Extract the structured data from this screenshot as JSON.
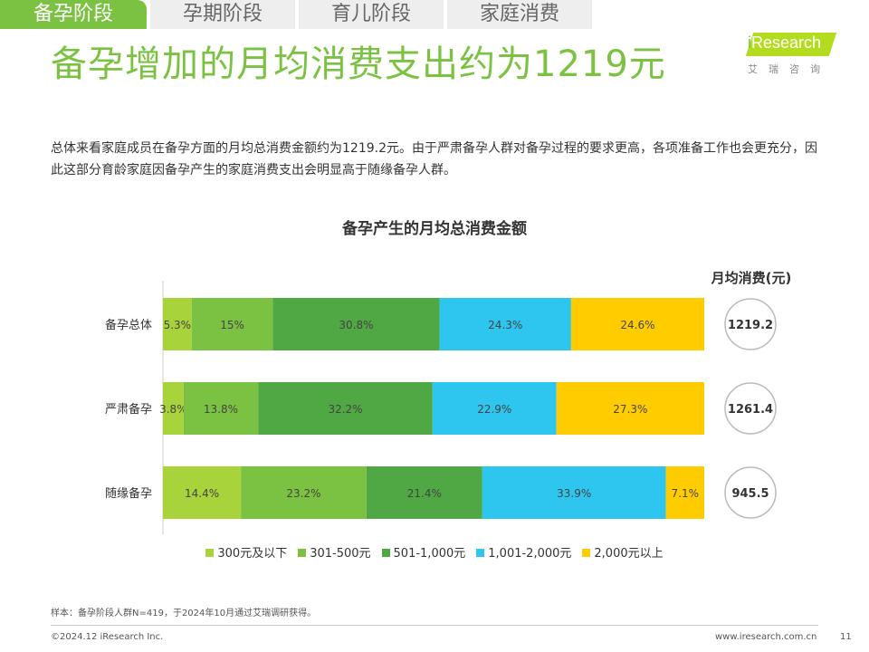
{
  "tabs": [
    {
      "label": "备孕阶段",
      "active": true
    },
    {
      "label": "孕期阶段",
      "active": false
    },
    {
      "label": "育儿阶段",
      "active": false
    },
    {
      "label": "家庭消费",
      "active": false
    }
  ],
  "page_title": "备孕增加的月均消费支出约为1219元",
  "logo": {
    "brand": "iResearch",
    "subtitle": "艾瑞咨询"
  },
  "summary": "总体来看家庭成员在备孕方面的月均总消费金额约为1219.2元。由于严肃备孕人群对备孕过程的要求更高，各项准备工作也会更充分，因此这部分育龄家庭因备孕产生的家庭消费支出会明显高于随缘备孕人群。",
  "chart_data": {
    "type": "bar",
    "orientation": "horizontal",
    "stacked": "percent",
    "title": "备孕产生的月均总消费金额",
    "categories": [
      "备孕总体",
      "严肃备孕",
      "随缘备孕"
    ],
    "series": [
      {
        "name": "300元及以下",
        "color": "#a9d33a",
        "values": [
          5.3,
          3.8,
          14.4
        ]
      },
      {
        "name": "301-500元",
        "color": "#7cc242",
        "values": [
          15,
          13.8,
          23.2
        ]
      },
      {
        "name": "501-1,000元",
        "color": "#4fa843",
        "values": [
          30.8,
          32.2,
          21.4
        ]
      },
      {
        "name": "1,001-2,000元",
        "color": "#2ec6ef",
        "values": [
          24.3,
          22.9,
          33.9
        ]
      },
      {
        "name": "2,000元以上",
        "color": "#ffcc00",
        "values": [
          24.6,
          27.3,
          7.1
        ]
      }
    ],
    "value_labels": [
      [
        "5.3%",
        "15%",
        "30.8%",
        "24.3%",
        "24.6%"
      ],
      [
        "3.8%",
        "13.8%",
        "32.2%",
        "22.9%",
        "27.3%"
      ],
      [
        "14.4%",
        "23.2%",
        "21.4%",
        "33.9%",
        "7.1%"
      ]
    ],
    "monthly_avg_title": "月均消费(元)",
    "monthly_avg": [
      "1219.2",
      "1261.4",
      "945.5"
    ],
    "legend_position": "bottom"
  },
  "footer": {
    "note": "样本：备孕阶段人群N=419，于2024年10月通过艾瑞调研获得。",
    "copyright": "©2024.12 iResearch Inc.",
    "website": "www.iresearch.com.cn",
    "page": "11"
  }
}
